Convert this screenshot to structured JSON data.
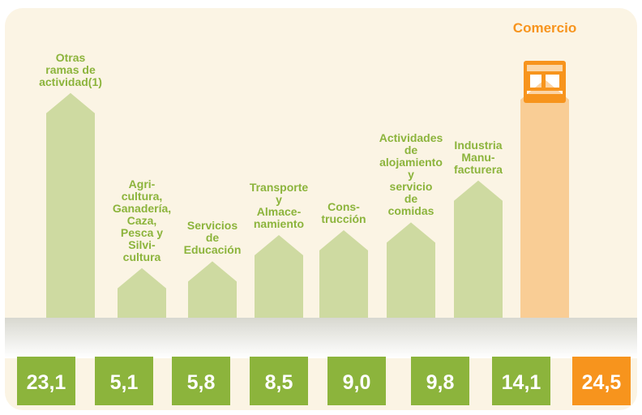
{
  "chart_data": {
    "type": "bar",
    "categories": [
      "Otras\nramas de\nactividad(1)",
      "Agri-\ncultura,\nGanadería,\nCaza,\nPesca y\nSilvi-\ncultura",
      "Servicios\nde\nEducación",
      "Transporte\ny\nAlmace-\nnamiento",
      "Cons-\ntrucción",
      "Actividades\nde\nalojamiento\ny\nservicio\nde\ncomidas",
      "Industria\nManu-\nfacturera",
      "Comercio"
    ],
    "values": [
      23.1,
      5.1,
      5.8,
      8.5,
      9.0,
      9.8,
      14.1,
      24.5
    ],
    "value_labels": [
      "23,1",
      "5,1",
      "5,8",
      "8,5",
      "9,0",
      "9,8",
      "14,1",
      "24,5"
    ],
    "colors": [
      "#8cb43c",
      "#8cb43c",
      "#8cb43c",
      "#8cb43c",
      "#8cb43c",
      "#8cb43c",
      "#8cb43c",
      "#f7941d"
    ]
  }
}
